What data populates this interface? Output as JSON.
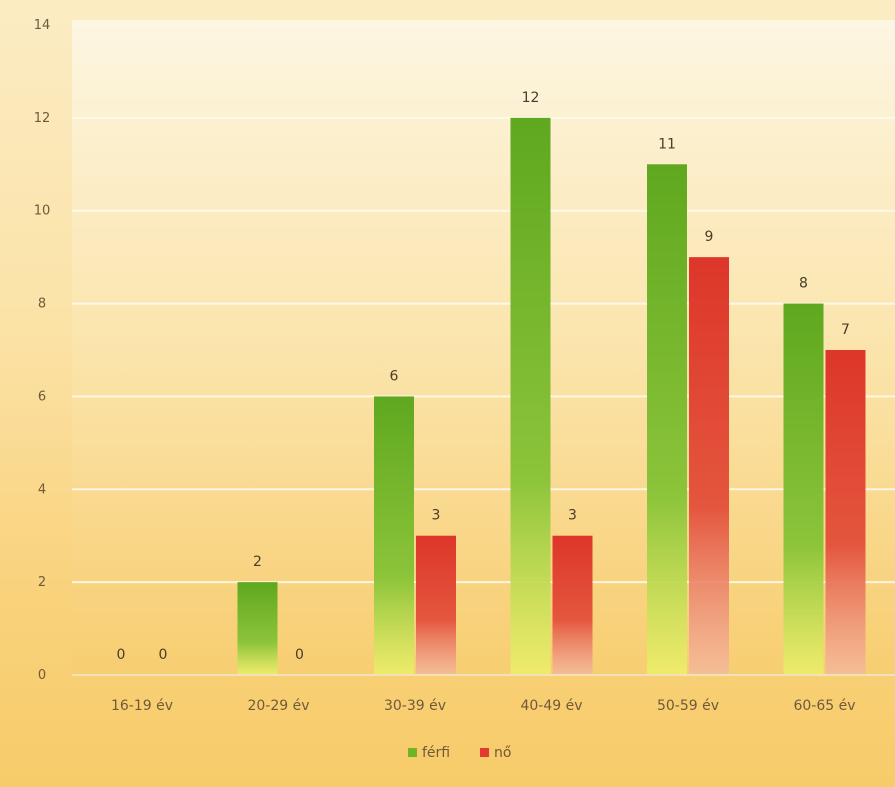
{
  "chart_data": {
    "type": "bar",
    "title": "",
    "xlabel": "",
    "ylabel": "",
    "categories": [
      "16-19 év",
      "20-29 év",
      "30-39 év",
      "40-49 év",
      "50-59 év",
      "60-65 év"
    ],
    "series": [
      {
        "name": "férfi",
        "values": [
          0,
          2,
          6,
          12,
          11,
          8
        ],
        "color": "#6fb425"
      },
      {
        "name": "nő",
        "values": [
          0,
          0,
          3,
          3,
          9,
          7
        ],
        "color": "#e23a2e"
      }
    ],
    "ylim": [
      0,
      14
    ],
    "yticks": [
      0,
      2,
      4,
      6,
      8,
      10,
      12,
      14
    ],
    "grid": true,
    "legend": "bottom-center"
  }
}
